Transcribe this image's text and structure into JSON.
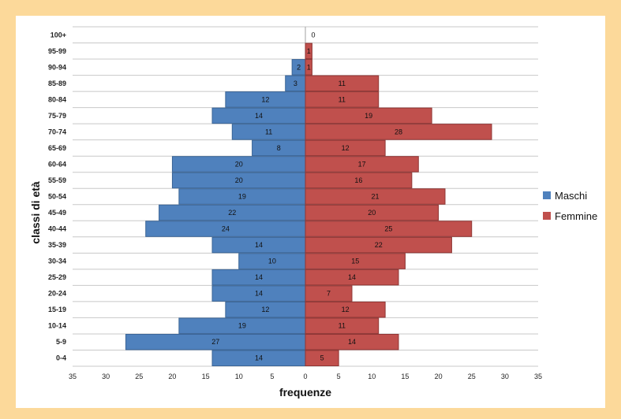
{
  "chart_data": {
    "type": "bar",
    "orientation": "horizontal",
    "xlabel": "frequenze",
    "ylabel": "classi di età",
    "xlim": [
      -35,
      35
    ],
    "x_tick_values": [
      -35,
      -30,
      -25,
      -20,
      -15,
      -10,
      -5,
      0,
      5,
      10,
      15,
      20,
      25,
      30,
      35
    ],
    "x_tick_labels": [
      "35",
      "30",
      "25",
      "20",
      "15",
      "10",
      "5",
      "0",
      "5",
      "10",
      "15",
      "20",
      "25",
      "30",
      "35"
    ],
    "grid": true,
    "legend_position": "right",
    "categories": [
      "0-4",
      "5-9",
      "10-14",
      "15-19",
      "20-24",
      "25-29",
      "30-34",
      "35-39",
      "40-44",
      "45-49",
      "50-54",
      "55-59",
      "60-64",
      "65-69",
      "70-74",
      "75-79",
      "80-84",
      "85-89",
      "90-94",
      "95-99",
      "100+"
    ],
    "series": [
      {
        "name": "Maschi",
        "color": "#4f81bd",
        "values": [
          14,
          27,
          19,
          12,
          14,
          14,
          10,
          14,
          24,
          22,
          19,
          20,
          20,
          8,
          11,
          14,
          12,
          3,
          2,
          0,
          0
        ],
        "labels": [
          "14",
          "27",
          "19",
          "12",
          "14",
          "14",
          "10",
          "14",
          "24",
          "22",
          "19",
          "20",
          "20",
          "8",
          "11",
          "14",
          "12",
          "3",
          "2",
          "",
          ""
        ]
      },
      {
        "name": "Femmine",
        "color": "#c0504d",
        "values": [
          5,
          14,
          11,
          12,
          7,
          14,
          15,
          22,
          25,
          20,
          21,
          16,
          17,
          12,
          28,
          19,
          11,
          11,
          1,
          1,
          0
        ],
        "labels": [
          "5",
          "14",
          "11",
          "12",
          "7",
          "14",
          "15",
          "22",
          "25",
          "20",
          "21",
          "16",
          "17",
          "12",
          "28",
          "19",
          "11",
          "11",
          "1",
          "1",
          "0"
        ]
      }
    ]
  }
}
